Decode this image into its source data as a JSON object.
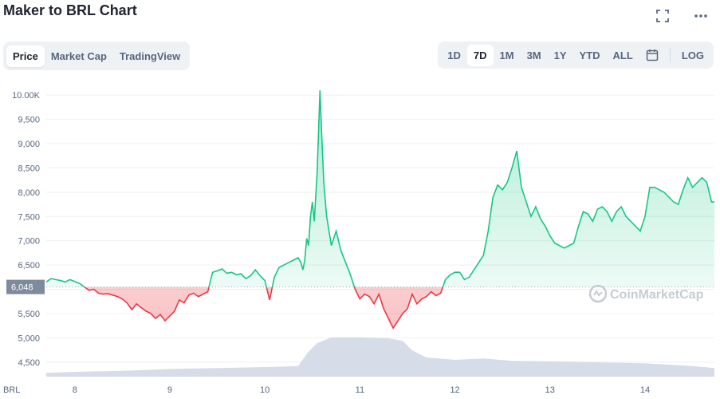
{
  "header": {
    "title": "Maker to BRL Chart"
  },
  "top_icons": [
    "expand-icon",
    "more-icon"
  ],
  "tabs": [
    {
      "label": "Price",
      "active": true
    },
    {
      "label": "Market Cap",
      "active": false
    },
    {
      "label": "TradingView",
      "active": false
    }
  ],
  "ranges": [
    {
      "label": "1D",
      "active": false
    },
    {
      "label": "7D",
      "active": true
    },
    {
      "label": "1M",
      "active": false
    },
    {
      "label": "3M",
      "active": false
    },
    {
      "label": "1Y",
      "active": false
    },
    {
      "label": "YTD",
      "active": false
    },
    {
      "label": "ALL",
      "active": false
    }
  ],
  "log_label": "LOG",
  "currency_label": "BRL",
  "watermark": "CoinMarketCap",
  "colors": {
    "up": "#16c784",
    "down": "#ea3943",
    "volume": "#cfd6e4",
    "ref_label_bg": "#808a9d"
  },
  "chart_data": {
    "type": "line",
    "title": "Maker to BRL Chart",
    "xlabel": "",
    "ylabel": "",
    "x_tick_labels": [
      "8",
      "9",
      "10",
      "11",
      "12",
      "13",
      "14"
    ],
    "x_range": [
      7.7,
      14.73
    ],
    "y_tick_labels": [
      "4,500",
      "5,000",
      "5,500",
      "6,000",
      "6,500",
      "7,000",
      "7,500",
      "8,000",
      "8,500",
      "9,000",
      "9,500",
      "10.00K"
    ],
    "y_ticks": [
      4500,
      5000,
      5500,
      6000,
      6500,
      7000,
      7500,
      8000,
      8500,
      9000,
      9500,
      10000
    ],
    "ylim": [
      4200,
      10250
    ],
    "reference_value": 6048,
    "reference_label": "6,048",
    "series": [
      {
        "x": [
          7.7,
          7.75,
          7.8,
          7.85,
          7.9,
          7.95,
          8.0,
          8.05,
          8.1,
          8.15,
          8.2,
          8.25,
          8.3,
          8.35,
          8.4,
          8.45,
          8.5,
          8.55,
          8.6,
          8.65,
          8.7,
          8.75,
          8.8,
          8.85,
          8.9,
          8.95,
          9.0,
          9.05,
          9.1,
          9.15,
          9.2,
          9.25,
          9.3,
          9.35,
          9.4,
          9.45,
          9.5,
          9.55,
          9.6,
          9.65,
          9.7,
          9.75,
          9.8,
          9.85,
          9.9,
          9.95,
          10.0,
          10.05,
          10.1,
          10.15,
          10.2,
          10.25,
          10.3,
          10.35,
          10.38,
          10.4,
          10.42,
          10.44,
          10.46,
          10.48,
          10.5,
          10.52,
          10.55,
          10.58,
          10.6,
          10.62,
          10.65,
          10.7,
          10.75,
          10.8,
          10.85,
          10.9,
          10.95,
          11.0,
          11.05,
          11.1,
          11.15,
          11.2,
          11.25,
          11.3,
          11.35,
          11.4,
          11.45,
          11.5,
          11.55,
          11.6,
          11.65,
          11.7,
          11.75,
          11.8,
          11.85,
          11.9,
          11.95,
          12.0,
          12.05,
          12.1,
          12.15,
          12.2,
          12.25,
          12.3,
          12.35,
          12.4,
          12.45,
          12.5,
          12.55,
          12.6,
          12.65,
          12.7,
          12.75,
          12.8,
          12.85,
          12.9,
          12.95,
          13.0,
          13.05,
          13.1,
          13.15,
          13.2,
          13.25,
          13.3,
          13.35,
          13.4,
          13.45,
          13.5,
          13.55,
          13.6,
          13.65,
          13.7,
          13.75,
          13.8,
          13.85,
          13.9,
          13.95,
          14.0,
          14.05,
          14.1,
          14.15,
          14.2,
          14.25,
          14.3,
          14.35,
          14.4,
          14.45,
          14.5,
          14.55,
          14.6,
          14.65,
          14.7,
          14.73
        ],
        "values": [
          6150,
          6220,
          6200,
          6180,
          6150,
          6200,
          6160,
          6120,
          6050,
          5980,
          6000,
          5920,
          5900,
          5910,
          5880,
          5850,
          5800,
          5720,
          5580,
          5700,
          5620,
          5550,
          5500,
          5400,
          5480,
          5350,
          5450,
          5550,
          5780,
          5720,
          5880,
          5920,
          5850,
          5900,
          5950,
          6350,
          6380,
          6420,
          6330,
          6350,
          6300,
          6320,
          6220,
          6280,
          6400,
          6280,
          6180,
          5780,
          6250,
          6450,
          6500,
          6550,
          6600,
          6650,
          6550,
          6400,
          6600,
          7050,
          6900,
          7500,
          7800,
          7400,
          8400,
          10100,
          9100,
          8200,
          7500,
          6900,
          7200,
          6800,
          6550,
          6300,
          6000,
          5800,
          5900,
          5850,
          5700,
          5900,
          5600,
          5400,
          5200,
          5350,
          5500,
          5600,
          5900,
          5700,
          5800,
          5850,
          5950,
          5870,
          5920,
          6200,
          6300,
          6350,
          6350,
          6200,
          6250,
          6400,
          6550,
          6700,
          7200,
          7900,
          8150,
          8050,
          8200,
          8500,
          8850,
          8100,
          7800,
          7500,
          7700,
          7450,
          7300,
          7100,
          6950,
          6900,
          6850,
          6900,
          6950,
          7300,
          7600,
          7550,
          7400,
          7650,
          7700,
          7600,
          7400,
          7600,
          7700,
          7500,
          7400,
          7300,
          7200,
          7500,
          8100,
          8100,
          8050,
          8000,
          7900,
          7800,
          7750,
          8050,
          8300,
          8100,
          8200,
          8300,
          8200,
          7800,
          7800
        ]
      }
    ],
    "volume_series": {
      "x": [
        7.7,
        8.0,
        8.5,
        9.0,
        9.5,
        10.0,
        10.35,
        10.45,
        10.55,
        10.7,
        11.0,
        11.3,
        11.45,
        11.55,
        11.7,
        12.0,
        12.3,
        12.6,
        13.0,
        13.5,
        14.0,
        14.5,
        14.73
      ],
      "values": [
        0.08,
        0.1,
        0.12,
        0.16,
        0.18,
        0.2,
        0.22,
        0.5,
        0.7,
        0.82,
        0.82,
        0.8,
        0.75,
        0.55,
        0.4,
        0.35,
        0.38,
        0.33,
        0.32,
        0.3,
        0.28,
        0.22,
        0.18
      ]
    },
    "log_scale": false,
    "grid": true
  }
}
